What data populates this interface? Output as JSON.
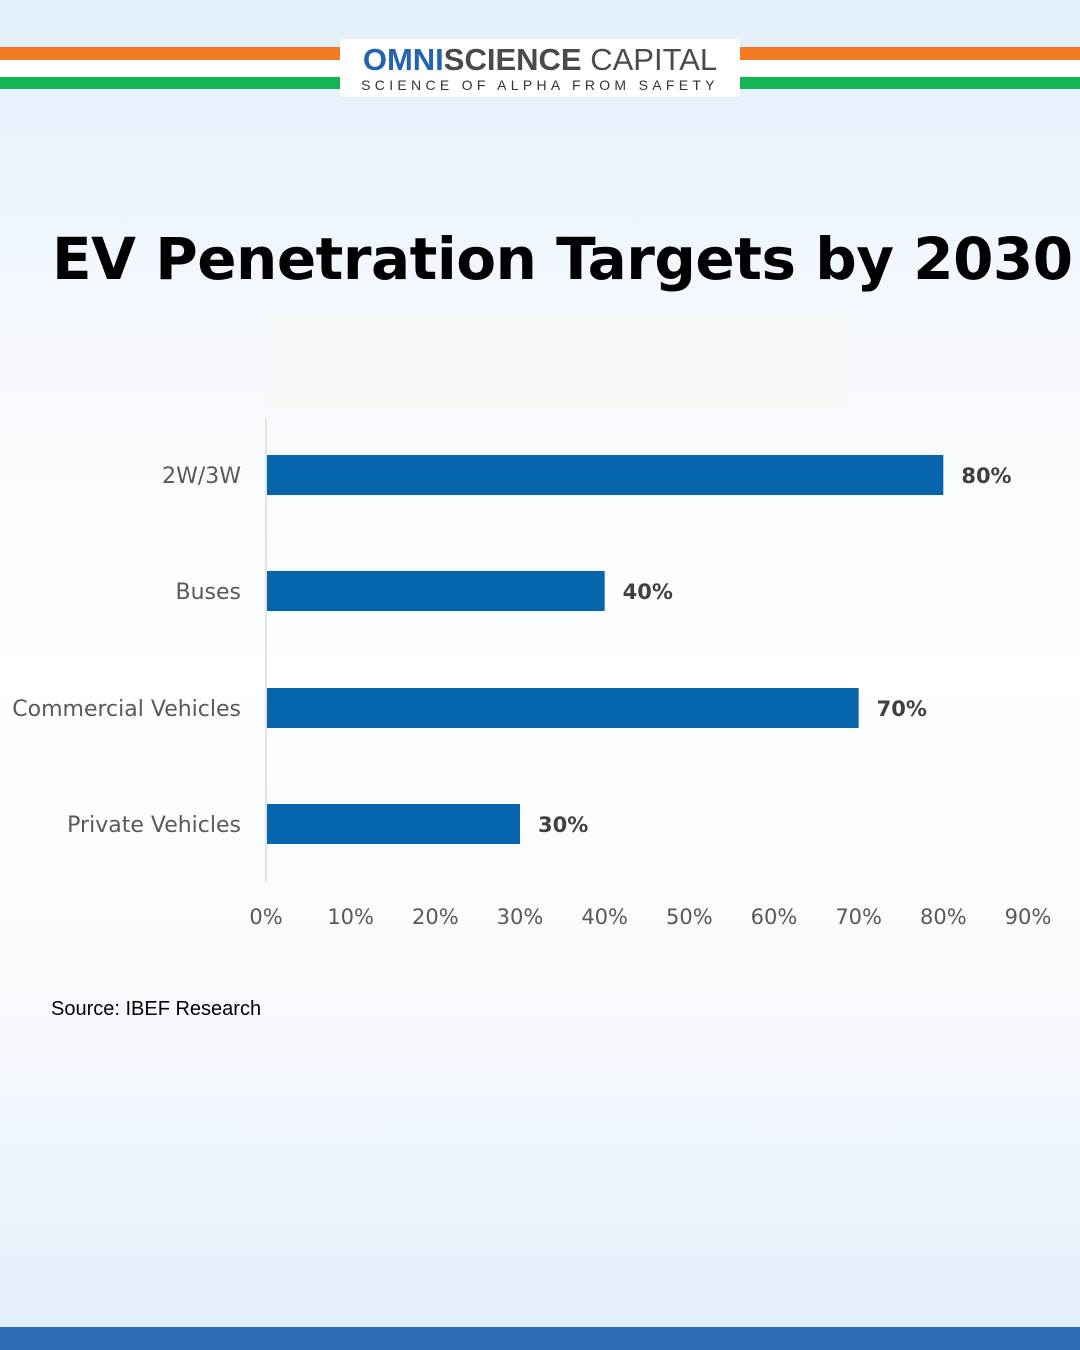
{
  "brand": {
    "name_part1": "OMNI",
    "name_part2": "SCIENCE",
    "name_part3": " CAPITAL",
    "tagline": "SCIENCE OF ALPHA FROM SAFETY"
  },
  "colors": {
    "orange": "#f57a24",
    "green": "#13b554",
    "bar": "#0765ad",
    "footer": "#2a6db5"
  },
  "chart_data": {
    "type": "bar",
    "orientation": "horizontal",
    "title": "EV Penetration Targets by 2030",
    "categories": [
      "2W/3W",
      "Buses",
      "Commercial Vehicles",
      "Private Vehicles"
    ],
    "values": [
      80,
      40,
      70,
      30
    ],
    "data_labels": [
      "80%",
      "40%",
      "70%",
      "30%"
    ],
    "xlim": [
      0,
      90
    ],
    "x_ticks": [
      "0%",
      "10%",
      "20%",
      "30%",
      "40%",
      "50%",
      "60%",
      "70%",
      "80%",
      "90%"
    ],
    "grid": false
  },
  "source": "Source: IBEF Research"
}
